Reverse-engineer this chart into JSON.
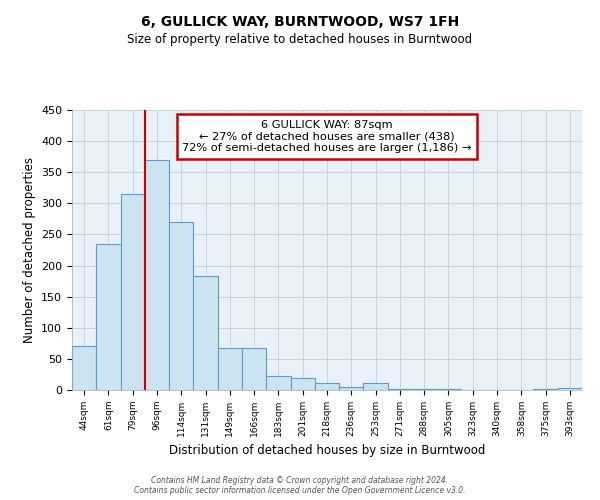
{
  "title": "6, GULLICK WAY, BURNTWOOD, WS7 1FH",
  "subtitle": "Size of property relative to detached houses in Burntwood",
  "xlabel": "Distribution of detached houses by size in Burntwood",
  "ylabel": "Number of detached properties",
  "bar_labels": [
    "44sqm",
    "61sqm",
    "79sqm",
    "96sqm",
    "114sqm",
    "131sqm",
    "149sqm",
    "166sqm",
    "183sqm",
    "201sqm",
    "218sqm",
    "236sqm",
    "253sqm",
    "271sqm",
    "288sqm",
    "305sqm",
    "323sqm",
    "340sqm",
    "358sqm",
    "375sqm",
    "393sqm"
  ],
  "bar_values": [
    70,
    235,
    315,
    370,
    270,
    183,
    68,
    68,
    23,
    20,
    12,
    5,
    12,
    2,
    2,
    2,
    0,
    0,
    0,
    2,
    3
  ],
  "bar_color": "#cce4f0",
  "bar_edge_color": "#5b9bd5",
  "line_color": "#cc0000",
  "box_color": "#ffffff",
  "box_edge_color": "#cc0000",
  "ylim": [
    0,
    450
  ],
  "marker_label": "6 GULLICK WAY: 87sqm",
  "annotation_line1": "← 27% of detached houses are smaller (438)",
  "annotation_line2": "72% of semi-detached houses are larger (1,186) →",
  "footer_line1": "Contains HM Land Registry data © Crown copyright and database right 2024.",
  "footer_line2": "Contains public sector information licensed under the Open Government Licence v3.0.",
  "bg_color": "#ffffff",
  "plot_bg_color": "#e8f0f8",
  "grid_color": "#c8d4e0"
}
